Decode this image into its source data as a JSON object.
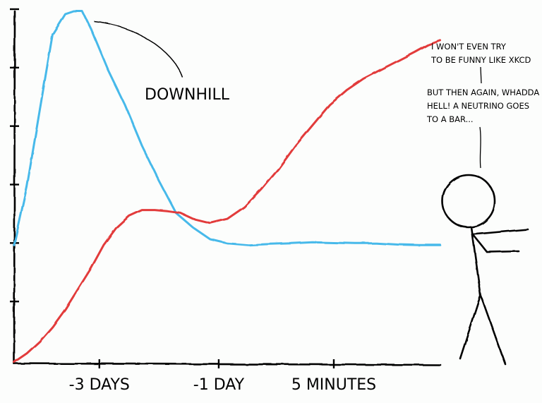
{
  "chart_data": {
    "type": "line",
    "style": "xkcd hand-drawn",
    "title": "",
    "xlabel": "",
    "ylabel": "",
    "grid": false,
    "legend": "none",
    "x_tick_labels": [
      "-3 DAYS",
      "-1 DAY",
      "5 MINUTES"
    ],
    "x_tick_positions": [
      0.2,
      0.48,
      0.75
    ],
    "y_ticks": [
      1,
      2,
      3,
      4,
      5,
      6
    ],
    "xlim": [
      0,
      1
    ],
    "ylim": [
      0,
      6
    ],
    "series": [
      {
        "color": "#46b9ea",
        "points": [
          [
            0.0,
            2.0
          ],
          [
            0.03,
            3.0
          ],
          [
            0.06,
            4.3
          ],
          [
            0.09,
            5.6
          ],
          [
            0.12,
            5.95
          ],
          [
            0.14,
            6.0
          ],
          [
            0.16,
            6.0
          ],
          [
            0.18,
            5.7
          ],
          [
            0.22,
            5.0
          ],
          [
            0.26,
            4.4
          ],
          [
            0.3,
            3.7
          ],
          [
            0.34,
            3.1
          ],
          [
            0.38,
            2.55
          ],
          [
            0.42,
            2.3
          ],
          [
            0.46,
            2.1
          ],
          [
            0.5,
            2.03
          ],
          [
            0.55,
            2.0
          ],
          [
            0.6,
            2.02
          ],
          [
            0.65,
            2.03
          ],
          [
            0.7,
            2.05
          ],
          [
            0.75,
            2.04
          ],
          [
            0.8,
            2.03
          ],
          [
            0.85,
            2.03
          ],
          [
            0.9,
            2.01
          ],
          [
            0.95,
            2.0
          ],
          [
            1.0,
            2.0
          ]
        ]
      },
      {
        "color": "#e23a3a",
        "points": [
          [
            0.0,
            0.0
          ],
          [
            0.03,
            0.15
          ],
          [
            0.06,
            0.35
          ],
          [
            0.09,
            0.6
          ],
          [
            0.12,
            0.9
          ],
          [
            0.15,
            1.25
          ],
          [
            0.18,
            1.6
          ],
          [
            0.21,
            2.0
          ],
          [
            0.24,
            2.3
          ],
          [
            0.27,
            2.5
          ],
          [
            0.3,
            2.6
          ],
          [
            0.33,
            2.6
          ],
          [
            0.36,
            2.58
          ],
          [
            0.39,
            2.55
          ],
          [
            0.42,
            2.45
          ],
          [
            0.46,
            2.38
          ],
          [
            0.5,
            2.45
          ],
          [
            0.54,
            2.65
          ],
          [
            0.58,
            2.95
          ],
          [
            0.62,
            3.3
          ],
          [
            0.66,
            3.7
          ],
          [
            0.7,
            4.05
          ],
          [
            0.74,
            4.4
          ],
          [
            0.78,
            4.65
          ],
          [
            0.82,
            4.85
          ],
          [
            0.86,
            5.0
          ],
          [
            0.9,
            5.15
          ],
          [
            0.94,
            5.3
          ],
          [
            0.97,
            5.42
          ],
          [
            1.0,
            5.5
          ]
        ]
      }
    ],
    "annotations": [
      {
        "text": "DOWNHILL",
        "point_to": [
          0.18,
          5.85
        ]
      }
    ]
  },
  "speech_bubble": {
    "line_1": "I WON'T EVEN TRY",
    "line_2": "TO BE FUNNY LIKE XKCD",
    "line_3": "BUT THEN AGAIN, WHADDA",
    "line_4": "HELL! A NEUTRINO GOES",
    "line_5": "TO A BAR..."
  }
}
